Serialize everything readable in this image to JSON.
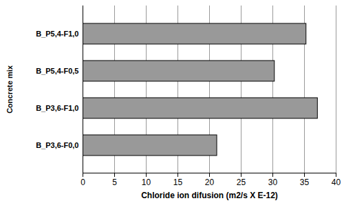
{
  "chart_data": {
    "type": "bar",
    "orientation": "horizontal",
    "categories": [
      "B_P5,4-F1,0",
      "B_P5,4-F0,5",
      "B_P3,6-F1,0",
      "B_P3,6-F0,0"
    ],
    "values": [
      35.3,
      30.3,
      37.1,
      21.2
    ],
    "color": "#999999",
    "xlim": [
      0,
      40
    ],
    "xticks": [
      0,
      5,
      10,
      15,
      20,
      25,
      30,
      35,
      40
    ],
    "xlabel": "Chloride ion difusion (m2/s X E-12)",
    "ylabel": "Concrete mix",
    "grid": true
  }
}
